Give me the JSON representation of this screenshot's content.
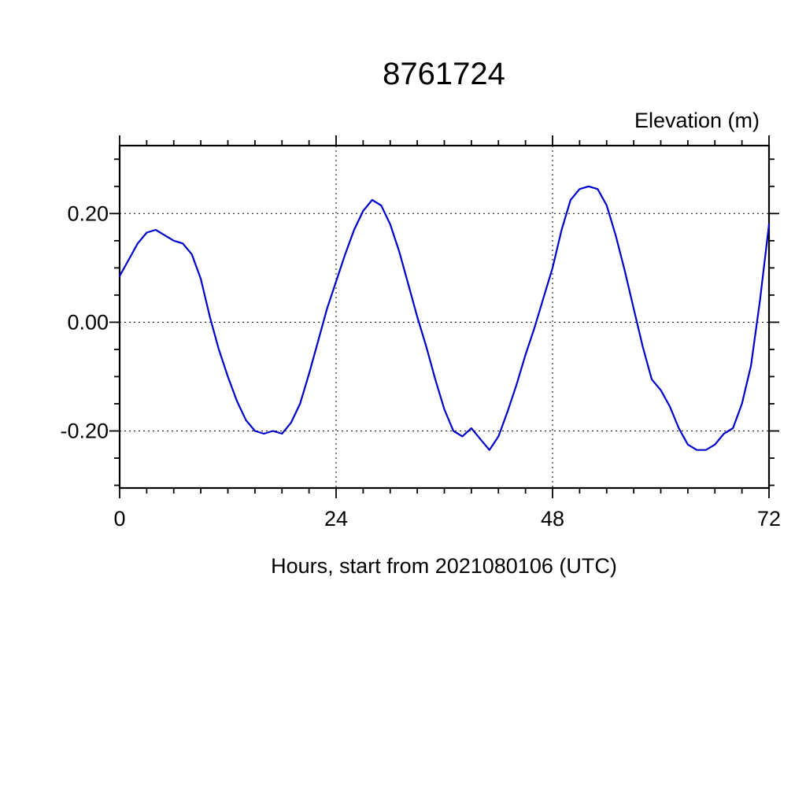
{
  "page": {
    "title": "8761724",
    "y_axis_title": "Elevation (m)",
    "x_axis_title": "Hours, start from 2021080106 (UTC)"
  },
  "chart_data": {
    "type": "line",
    "title": "8761724",
    "xlabel": "Hours, start from 2021080106 (UTC)",
    "ylabel": "Elevation (m)",
    "xlim": [
      0,
      72
    ],
    "ylim": [
      -0.305,
      0.325
    ],
    "xticks": [
      0,
      24,
      48,
      72
    ],
    "xtick_labels": [
      "0",
      "24",
      "48",
      "72"
    ],
    "yticks": [
      -0.2,
      0.0,
      0.2
    ],
    "ytick_labels": [
      "-0.20",
      "0.00",
      "0.20"
    ],
    "x_minor_step": 3,
    "y_minor_step": 0.05,
    "grid": true,
    "grid_x": [
      24,
      48
    ],
    "grid_y": [
      -0.2,
      0.0,
      0.2
    ],
    "legend": false,
    "line_color": "#0000cc",
    "series": [
      {
        "name": "elevation",
        "x": [
          0,
          1,
          2,
          3,
          4,
          5,
          6,
          7,
          8,
          9,
          10,
          11,
          12,
          13,
          14,
          15,
          16,
          17,
          18,
          19,
          20,
          21,
          22,
          23,
          24,
          25,
          26,
          27,
          28,
          29,
          30,
          31,
          32,
          33,
          34,
          35,
          36,
          37,
          38,
          39,
          40,
          41,
          42,
          43,
          44,
          45,
          46,
          47,
          48,
          49,
          50,
          51,
          52,
          53,
          54,
          55,
          56,
          57,
          58,
          59,
          60,
          61,
          62,
          63,
          64,
          65,
          66,
          67,
          68,
          69,
          70,
          71,
          72
        ],
        "values": [
          0.085,
          0.115,
          0.145,
          0.165,
          0.17,
          0.16,
          0.15,
          0.145,
          0.125,
          0.08,
          0.01,
          -0.05,
          -0.1,
          -0.145,
          -0.18,
          -0.2,
          -0.205,
          -0.2,
          -0.205,
          -0.185,
          -0.15,
          -0.095,
          -0.035,
          0.025,
          0.075,
          0.125,
          0.17,
          0.205,
          0.225,
          0.215,
          0.18,
          0.13,
          0.07,
          0.01,
          -0.045,
          -0.105,
          -0.16,
          -0.2,
          -0.21,
          -0.195,
          -0.215,
          -0.235,
          -0.21,
          -0.165,
          -0.115,
          -0.06,
          -0.01,
          0.045,
          0.1,
          0.17,
          0.225,
          0.245,
          0.25,
          0.245,
          0.215,
          0.16,
          0.095,
          0.025,
          -0.045,
          -0.105,
          -0.125,
          -0.155,
          -0.195,
          -0.225,
          -0.235,
          -0.235,
          -0.225,
          -0.205,
          -0.195,
          -0.15,
          -0.08,
          0.04,
          0.18
        ]
      }
    ]
  }
}
